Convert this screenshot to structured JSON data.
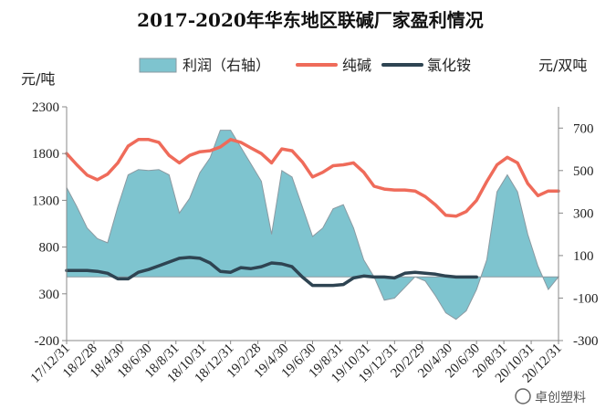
{
  "chart_data": {
    "type": "line",
    "title": "2017-2020年华东地区联碱厂家盈利情况",
    "left_unit": "元/吨",
    "right_unit": "元/双吨",
    "y_left": {
      "min": -200,
      "max": 2300,
      "ticks": [
        "2300",
        "1800",
        "1300",
        "800",
        "300",
        "-200"
      ]
    },
    "y_right": {
      "min": -300,
      "max": 800,
      "ticks": [
        "700",
        "500",
        "300",
        "100",
        "-100",
        "-300"
      ]
    },
    "x_labels": [
      "17/12/31",
      "18/2/28",
      "18/4/30",
      "18/6/30",
      "18/8/31",
      "18/10/31",
      "18/12/31",
      "19/2/28",
      "19/4/30",
      "19/6/30",
      "19/8/31",
      "19/10/31",
      "19/12/31",
      "20/2/29",
      "20/4/30",
      "20/6/30",
      "20/8/31",
      "20/10/31",
      "20/12/31"
    ],
    "series": [
      {
        "name": "利润（右轴）",
        "type": "area",
        "axis": "right",
        "color": "#7ec4cf",
        "points": [
          [
            0,
            420
          ],
          [
            1,
            330
          ],
          [
            2,
            230
          ],
          [
            3,
            180
          ],
          [
            4,
            160
          ],
          [
            5,
            330
          ],
          [
            6,
            480
          ],
          [
            7,
            505
          ],
          [
            8,
            500
          ],
          [
            9,
            505
          ],
          [
            10,
            480
          ],
          [
            11,
            300
          ],
          [
            12,
            370
          ],
          [
            13,
            490
          ],
          [
            14,
            560
          ],
          [
            15,
            690
          ],
          [
            16,
            690
          ],
          [
            17,
            610
          ],
          [
            18,
            530
          ],
          [
            19,
            450
          ],
          [
            20,
            200
          ],
          [
            21,
            500
          ],
          [
            22,
            470
          ],
          [
            23,
            330
          ],
          [
            24,
            190
          ],
          [
            25,
            230
          ],
          [
            26,
            320
          ],
          [
            27,
            340
          ],
          [
            28,
            230
          ],
          [
            29,
            80
          ],
          [
            30,
            0
          ],
          [
            31,
            -110
          ],
          [
            32,
            -100
          ],
          [
            33,
            -50
          ],
          [
            34,
            0
          ],
          [
            35,
            -20
          ],
          [
            36,
            -90
          ],
          [
            37,
            -170
          ],
          [
            38,
            -200
          ],
          [
            39,
            -160
          ],
          [
            40,
            -60
          ],
          [
            41,
            80
          ],
          [
            42,
            400
          ],
          [
            43,
            480
          ],
          [
            44,
            400
          ],
          [
            45,
            200
          ],
          [
            46,
            50
          ],
          [
            47,
            -60
          ],
          [
            48,
            0
          ]
        ]
      },
      {
        "name": "纯碱",
        "type": "line",
        "axis": "left",
        "color": "#ef6b5a",
        "points": [
          [
            0,
            1800
          ],
          [
            1,
            1680
          ],
          [
            2,
            1570
          ],
          [
            3,
            1520
          ],
          [
            4,
            1580
          ],
          [
            5,
            1700
          ],
          [
            6,
            1880
          ],
          [
            7,
            1950
          ],
          [
            8,
            1950
          ],
          [
            9,
            1920
          ],
          [
            10,
            1780
          ],
          [
            11,
            1700
          ],
          [
            12,
            1780
          ],
          [
            13,
            1820
          ],
          [
            14,
            1830
          ],
          [
            15,
            1870
          ],
          [
            16,
            1950
          ],
          [
            17,
            1920
          ],
          [
            18,
            1860
          ],
          [
            19,
            1800
          ],
          [
            20,
            1700
          ],
          [
            21,
            1850
          ],
          [
            22,
            1830
          ],
          [
            23,
            1710
          ],
          [
            24,
            1550
          ],
          [
            25,
            1600
          ],
          [
            26,
            1670
          ],
          [
            27,
            1680
          ],
          [
            28,
            1700
          ],
          [
            29,
            1600
          ],
          [
            30,
            1450
          ],
          [
            31,
            1420
          ],
          [
            32,
            1410
          ],
          [
            33,
            1410
          ],
          [
            34,
            1400
          ],
          [
            35,
            1340
          ],
          [
            36,
            1250
          ],
          [
            37,
            1140
          ],
          [
            38,
            1130
          ],
          [
            39,
            1180
          ],
          [
            40,
            1300
          ],
          [
            41,
            1500
          ],
          [
            42,
            1680
          ],
          [
            43,
            1760
          ],
          [
            44,
            1700
          ],
          [
            45,
            1480
          ],
          [
            46,
            1350
          ],
          [
            47,
            1400
          ],
          [
            48,
            1400
          ]
        ]
      },
      {
        "name": "氯化铵",
        "type": "line",
        "axis": "left",
        "color": "#2e4452",
        "points": [
          [
            0,
            550
          ],
          [
            1,
            550
          ],
          [
            2,
            550
          ],
          [
            3,
            540
          ],
          [
            4,
            520
          ],
          [
            5,
            460
          ],
          [
            6,
            460
          ],
          [
            7,
            530
          ],
          [
            8,
            560
          ],
          [
            9,
            600
          ],
          [
            10,
            640
          ],
          [
            11,
            680
          ],
          [
            12,
            690
          ],
          [
            13,
            680
          ],
          [
            14,
            630
          ],
          [
            15,
            540
          ],
          [
            16,
            530
          ],
          [
            17,
            580
          ],
          [
            18,
            570
          ],
          [
            19,
            590
          ],
          [
            20,
            630
          ],
          [
            21,
            620
          ],
          [
            22,
            590
          ],
          [
            23,
            480
          ],
          [
            24,
            390
          ],
          [
            25,
            390
          ],
          [
            26,
            390
          ],
          [
            27,
            400
          ],
          [
            28,
            470
          ],
          [
            29,
            490
          ],
          [
            30,
            480
          ],
          [
            31,
            480
          ],
          [
            32,
            470
          ],
          [
            33,
            520
          ],
          [
            34,
            530
          ],
          [
            35,
            520
          ],
          [
            36,
            510
          ],
          [
            37,
            490
          ],
          [
            38,
            480
          ],
          [
            39,
            480
          ],
          [
            40,
            480
          ]
        ]
      }
    ],
    "watermark": "卓创塑料",
    "colors": {
      "axis": "#888888",
      "profit_fill": "#7ec4cf",
      "profit_edge": "#8a9aa2"
    }
  }
}
